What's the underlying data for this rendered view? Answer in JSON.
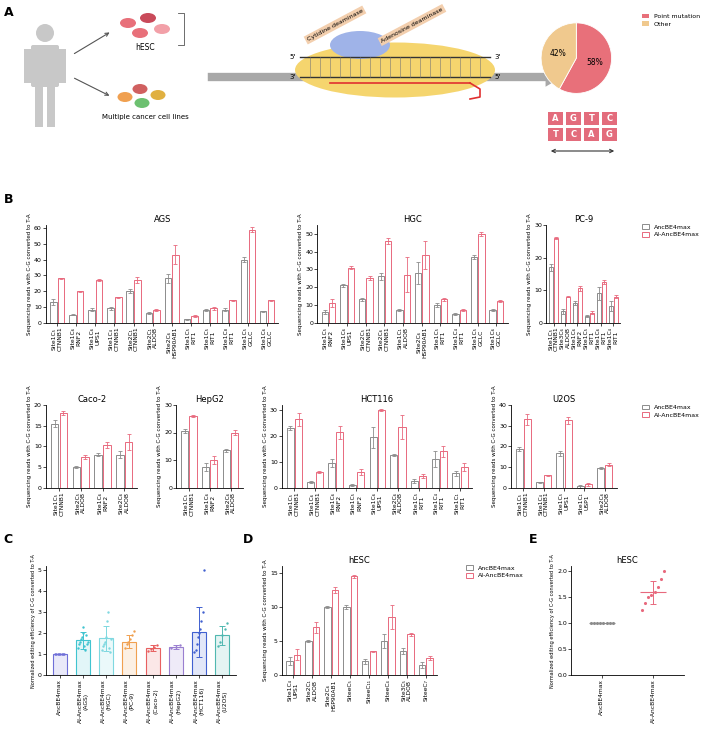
{
  "panel_labels": [
    "A",
    "B",
    "C",
    "D",
    "E"
  ],
  "diagram": {
    "hesc": "hESC",
    "cancer_cells": "Multiple cancer cell lines",
    "enzymes": [
      "Cytidine deaminase",
      "Adenosine deaminase"
    ],
    "strand_ends": {
      "top": [
        "5'",
        "3'"
      ],
      "bottom": [
        "3'",
        "5'"
      ]
    },
    "bases": {
      "top": [
        "A",
        "G",
        "T",
        "C"
      ],
      "bottom": [
        "T",
        "C",
        "A",
        "G"
      ]
    }
  },
  "chart_data": [
    {
      "type": "pie",
      "categories": [
        "Point mutation",
        "Other"
      ],
      "values": [
        58,
        42
      ],
      "value_labels": [
        "58%",
        "42%"
      ],
      "colors": [
        "#e8707a",
        "#f0c98e"
      ],
      "data_labels": true,
      "legend": "upper right"
    },
    {
      "type": "bar",
      "title": "AGS",
      "ylabel": "Sequencing reads with C-G converted to T-A",
      "categories": [
        "Site1C₅\nCTNNB1",
        "Site1C₆\nRNF2",
        "Site1C₆\nUPS1",
        "Site1C₄\nCTNNB1",
        "Site2C₁\nCTNNB1",
        "Site2C₁\nALDOB",
        "Site2C₆\nHSP90AB1",
        "Site1C₅\nRIT1",
        "Site1C₅\nRIT1",
        "Site1C₈\nRIT1",
        "Site1C₅\nGCLC",
        "Site1C₆\nGCLC"
      ],
      "series": [
        {
          "name": "AncBE4max",
          "color": "#8c8c8c",
          "values": [
            13,
            5,
            8,
            9,
            20,
            6,
            28,
            2,
            8,
            8,
            40,
            7
          ],
          "errors": [
            2,
            0.5,
            1,
            1,
            1.5,
            0.5,
            3,
            0.3,
            0.5,
            1,
            1.5,
            0.5
          ]
        },
        {
          "name": "AI-AncBE4max",
          "color": "#e8697d",
          "values": [
            28,
            20,
            27,
            16,
            27,
            8,
            43,
            4,
            9,
            14,
            59,
            14
          ],
          "errors": [
            0.5,
            0.3,
            0.5,
            0.5,
            2,
            0.5,
            6,
            0.5,
            1,
            0.5,
            1.5,
            0.3
          ]
        }
      ],
      "ylim": [
        0,
        62
      ],
      "yticks": [
        0,
        10,
        20,
        30,
        40,
        50,
        60
      ]
    },
    {
      "type": "bar",
      "title": "HGC",
      "ylabel": "Sequencing reads with C-G converted to T-A",
      "categories": [
        "Site1C₅\nRNF2",
        "Site1C₆\nUPS1",
        "Site2C₅\nCTNNB1",
        "Site2C₆\nCTNNB1",
        "Site1C₁\nALDOB",
        "Site2C₆\nHSP90AB1",
        "Site1C₅\nRIT1",
        "Site1C₄\nRIT1",
        "Site1C₅\nGCLC",
        "Site1C₆\nGCLC"
      ],
      "series": [
        {
          "name": "AncBE4max",
          "color": "#8c8c8c",
          "values": [
            6,
            21,
            13,
            26,
            7,
            28,
            10,
            5,
            37,
            7
          ],
          "errors": [
            1,
            1,
            1,
            2,
            0.5,
            6,
            1,
            0.5,
            1,
            0.5
          ]
        },
        {
          "name": "AI-AncBE4max",
          "color": "#e8697d",
          "values": [
            11,
            31,
            25,
            46,
            27,
            38,
            13,
            7,
            50,
            12
          ],
          "errors": [
            2,
            1,
            1,
            1.5,
            10,
            8,
            1,
            0.5,
            1,
            0.5
          ]
        }
      ],
      "ylim": [
        0,
        55
      ],
      "yticks": [
        0,
        10,
        20,
        30,
        40,
        50
      ]
    },
    {
      "type": "bar",
      "title": "PC-9",
      "ylabel": "Sequencing reads with C-G converted to T-A",
      "categories": [
        "Site1C₅\nCTNNB1",
        "Site3C₆\nALDOB",
        "Site1C₆\nRNF2",
        "Site1C₅\nRIT1",
        "Site1C₆\nRIT1",
        "Site1C₄\nRIT1"
      ],
      "series": [
        {
          "name": "AncBE4max",
          "color": "#8c8c8c",
          "values": [
            17,
            3.5,
            6,
            2,
            9,
            5
          ],
          "errors": [
            1,
            0.8,
            0.7,
            0.3,
            2,
            1.5
          ]
        },
        {
          "name": "AI-AncBE4max",
          "color": "#e8697d",
          "values": [
            26,
            8,
            10.5,
            3,
            12.5,
            8
          ],
          "errors": [
            0.3,
            0.3,
            0.7,
            0.5,
            0.7,
            0.5
          ]
        }
      ],
      "ylim": [
        0,
        30
      ],
      "yticks": [
        0,
        10,
        20,
        30
      ],
      "legend": "upper right"
    },
    {
      "type": "bar",
      "title": "Caco-2",
      "ylabel": "Sequencing reads with C-G converted to T-A",
      "categories": [
        "Site1C₅\nCTNNB1",
        "Site2C₅\nALDOB",
        "Site1C₆\nRNF2",
        "Site2C₆\nALDOB"
      ],
      "series": [
        {
          "name": "AncBE4max",
          "color": "#8c8c8c",
          "values": [
            15.5,
            5,
            8,
            8
          ],
          "errors": [
            0.8,
            0.3,
            0.3,
            0.8
          ]
        },
        {
          "name": "AI-AncBE4max",
          "color": "#e8697d",
          "values": [
            18,
            7.5,
            10.3,
            11
          ],
          "errors": [
            0.5,
            0.5,
            0.8,
            2
          ]
        }
      ],
      "ylim": [
        0,
        20
      ],
      "yticks": [
        0,
        5,
        10,
        15,
        20
      ]
    },
    {
      "type": "bar",
      "title": "HepG2",
      "ylabel": "Sequencing reads with C-G converted to T-A",
      "categories": [
        "Site1C₅\nCTNNB1",
        "Site1C₆\nRNF2",
        "Site2C₆\nALDOB"
      ],
      "series": [
        {
          "name": "AncBE4max",
          "color": "#8c8c8c",
          "values": [
            20.5,
            7.5,
            13.5
          ],
          "errors": [
            0.8,
            1.5,
            0.5
          ]
        },
        {
          "name": "AI-AncBE4max",
          "color": "#e8697d",
          "values": [
            26,
            10,
            20
          ],
          "errors": [
            0.3,
            1.5,
            1
          ]
        }
      ],
      "ylim": [
        0,
        30
      ],
      "yticks": [
        0,
        10,
        20,
        30
      ]
    },
    {
      "type": "bar",
      "title": "HCT116",
      "ylabel": "Sequencing reads with C-G converted to T-A",
      "categories": [
        "Site1C₅\nCTNNB1",
        "Site1C₆\nCTNNB1",
        "Site1C₆\nRNF2",
        "Site1C₅\nRNF2",
        "Site1C₆\nUPS1",
        "Site2C₆\nALDOB",
        "Site1C₅\nRIT1",
        "Site1C₄\nRIT1",
        "Site1C₁\nRIT1"
      ],
      "series": [
        {
          "name": "AncBE4max",
          "color": "#8c8c8c",
          "values": [
            23,
            2,
            9.5,
            1,
            19.5,
            12.5,
            2.5,
            11,
            5.5
          ],
          "errors": [
            0.7,
            0.4,
            1.5,
            0.3,
            4,
            0.4,
            0.8,
            3,
            1
          ]
        },
        {
          "name": "AI-AncBE4max",
          "color": "#e8697d",
          "values": [
            26.5,
            6,
            21.5,
            6,
            30,
            23.5,
            4.5,
            14,
            8
          ],
          "errors": [
            2.5,
            0.3,
            2.5,
            1,
            0.4,
            4.5,
            0.8,
            2,
            1.5
          ]
        }
      ],
      "ylim": [
        0,
        32
      ],
      "yticks": [
        0,
        10,
        20,
        30
      ]
    },
    {
      "type": "bar",
      "title": "U2OS",
      "ylabel": "Sequencing reads with C-G converted to T-A",
      "categories": [
        "Site1C₅\nCTNNB1",
        "Site1C₄\nCTNNB1",
        "Site1C₅\nUPS1",
        "Site1C₁\nUSP1",
        "Site2C₆\nALDOB"
      ],
      "series": [
        {
          "name": "AncBE4max",
          "color": "#8c8c8c",
          "values": [
            18.5,
            2.5,
            16.5,
            0.5,
            9.5
          ],
          "errors": [
            1,
            0.3,
            1,
            0.5,
            0.6
          ]
        },
        {
          "name": "AI-AncBE4max",
          "color": "#e8697d",
          "values": [
            33,
            6,
            32.5,
            1.5,
            11
          ],
          "errors": [
            2.5,
            0.2,
            1.5,
            0.8,
            0.8
          ]
        }
      ],
      "ylim": [
        0,
        40
      ],
      "yticks": [
        0,
        10,
        20,
        30,
        40
      ],
      "legend": "upper right"
    },
    {
      "type": "bar",
      "ylabel": "Normalized editing efficiency of C-G converted to T-A",
      "categories": [
        "AncBE4max",
        "AI-AncBE4max\n(AGS)",
        "AI-AncBE4max\n(HGC)",
        "AI-AncBE4max\n(PC-9)",
        "AI-AncBE4max\n(Caco-2)",
        "AI-AncBE4max\n(HepG2)",
        "AI-AncBE4max\n(HCT116)",
        "AI-AncBE4max\n(U2OS)"
      ],
      "values": [
        1,
        1.65,
        1.75,
        1.6,
        1.3,
        1.35,
        2.05,
        1.9
      ],
      "errors": [
        0,
        0.4,
        0.6,
        0.3,
        0.15,
        0.1,
        1.2,
        0.45
      ],
      "points": [
        [
          1,
          1,
          1,
          1,
          1,
          1,
          1,
          1
        ],
        [
          1.3,
          1.5,
          1.6,
          1.7,
          1.8,
          2.0,
          2.3,
          1.4,
          1.2,
          1.9,
          1.5,
          1.6
        ],
        [
          1.2,
          1.4,
          1.5,
          1.6,
          1.8,
          2.6,
          3.0,
          1.3,
          1.1,
          1.7
        ],
        [
          1.3,
          1.5,
          1.6,
          1.7,
          1.9,
          2.1
        ],
        [
          1.15,
          1.25,
          1.35,
          1.45
        ],
        [
          1.3,
          1.35,
          1.45
        ],
        [
          1.1,
          1.2,
          1.5,
          1.8,
          2.0,
          2.2,
          2.6,
          3.0,
          5.0
        ],
        [
          1.4,
          1.6,
          1.9,
          2.2,
          2.5
        ]
      ],
      "colors": [
        "#6f6fd8",
        "#40c4d0",
        "#7fd8e0",
        "#f0a050",
        "#e86060",
        "#9a7fd0",
        "#4060d0",
        "#50b8b0"
      ],
      "ylim": [
        0,
        5.2
      ],
      "yticks": [
        0,
        1,
        2,
        3,
        4,
        5
      ]
    },
    {
      "type": "bar",
      "title": "hESC",
      "ylabel": "Sequencing reads with C-G converted to T-A",
      "categories": [
        "Site1C₄\nUPS1",
        "Site2C₁\nALDOB",
        "Site2C₆\nHSP90AB1",
        "SiteeC₅",
        "SiteeC₁₁",
        "SiteeC₄",
        "Site3C₅\nALDOB",
        "SiteeC₇"
      ],
      "series": [
        {
          "name": "AncBE4max",
          "color": "#8c8c8c",
          "values": [
            2,
            5,
            10,
            10,
            2,
            5,
            3.5,
            1.5
          ],
          "errors": [
            0.6,
            0.1,
            0.2,
            0.3,
            0.4,
            1,
            0.4,
            0.4
          ]
        },
        {
          "name": "AI-AncBE4max",
          "color": "#e8697d",
          "values": [
            3,
            7,
            12.5,
            14.5,
            3.5,
            8.5,
            6,
            2.5
          ],
          "errors": [
            0.8,
            0.8,
            0.5,
            0.2,
            0.1,
            1.8,
            0.2,
            0.3
          ]
        }
      ],
      "ylim": [
        0,
        16
      ],
      "yticks": [
        0,
        5,
        10,
        15
      ],
      "legend": "upper right"
    },
    {
      "type": "scatter",
      "title": "hESC",
      "ylabel": "Normalized editing efficiency of C-G converted to T-A",
      "categories": [
        "AncBE4max",
        "AI-AncBE4max"
      ],
      "values": [
        1.0,
        1.6
      ],
      "errors": [
        0.0,
        0.22
      ],
      "points": [
        [
          1,
          1,
          1,
          1,
          1,
          1,
          1,
          1
        ],
        [
          1.25,
          1.4,
          1.5,
          1.55,
          1.6,
          1.7,
          1.85,
          2.0
        ]
      ],
      "colors": [
        "#8c8c8c",
        "#e8697d"
      ],
      "ylim": [
        0,
        2.1
      ],
      "yticks": [
        0.0,
        0.5,
        1.0,
        1.5,
        2.0
      ]
    }
  ]
}
